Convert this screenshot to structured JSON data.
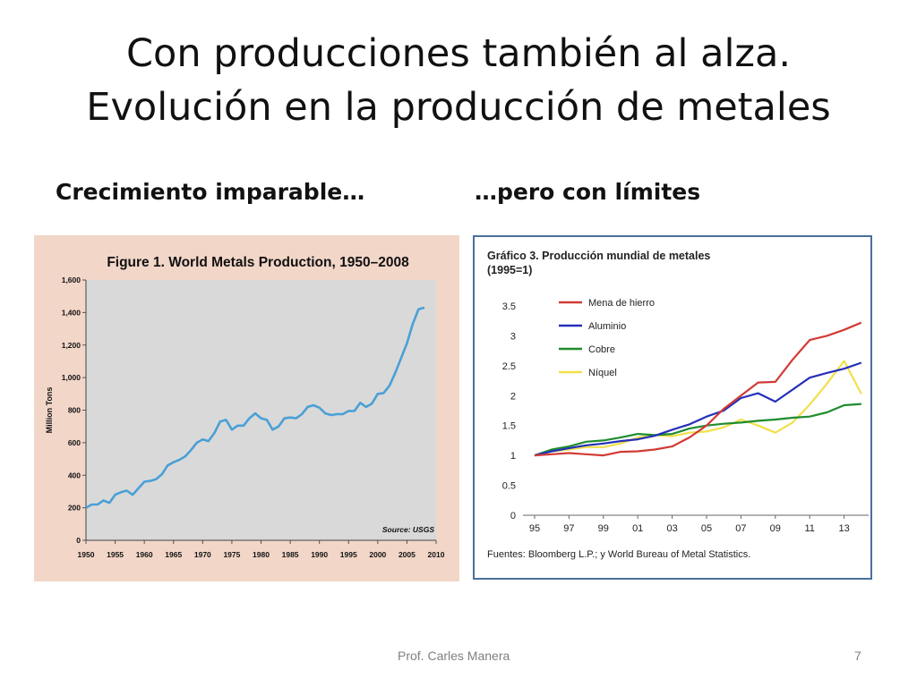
{
  "slide": {
    "title_line1": "Con producciones también al alza.",
    "title_line2": "Evolución en la producción de metales",
    "left_heading": "Crecimiento imparable…",
    "right_heading": "…pero con límites",
    "footer_author": "Prof. Carles Manera",
    "page_number": "7"
  },
  "colors": {
    "left_bg": "#f2d6c8",
    "left_plot": "#d9d9d9",
    "left_line": "#4aa0d6",
    "right_border": "#4a6f9c",
    "iron": "#d23b35",
    "aluminum": "#2430b8",
    "copper": "#1f8c2e",
    "nickel": "#f1e04a"
  },
  "chart_data": [
    {
      "type": "line",
      "title": "Figure 1. World Metals Production, 1950–2008",
      "xlabel": "",
      "ylabel": "Million Tons",
      "source": "Source: USGS",
      "xlim": [
        1950,
        2010
      ],
      "ylim": [
        0,
        1600
      ],
      "x_ticks": [
        1950,
        1955,
        1960,
        1965,
        1970,
        1975,
        1980,
        1985,
        1990,
        1995,
        2000,
        2005,
        2010
      ],
      "x_tick_labels": [
        "1950",
        "1955",
        "1960",
        "1965",
        "1970",
        "1975",
        "1980",
        "1985",
        "1990",
        "1995",
        "2000",
        "2005",
        "2010"
      ],
      "y_ticks": [
        0,
        200,
        400,
        600,
        800,
        1000,
        1200,
        1400,
        1600
      ],
      "y_tick_labels": [
        "0",
        "200",
        "400",
        "600",
        "800",
        "1,000",
        "1,200",
        "1,400",
        "1,600"
      ],
      "grid": false,
      "series": [
        {
          "name": "World Metals Production",
          "x": [
            1950,
            1951,
            1952,
            1953,
            1954,
            1955,
            1956,
            1957,
            1958,
            1959,
            1960,
            1961,
            1962,
            1963,
            1964,
            1965,
            1966,
            1967,
            1968,
            1969,
            1970,
            1971,
            1972,
            1973,
            1974,
            1975,
            1976,
            1977,
            1978,
            1979,
            1980,
            1981,
            1982,
            1983,
            1984,
            1985,
            1986,
            1987,
            1988,
            1989,
            1990,
            1991,
            1992,
            1993,
            1994,
            1995,
            1996,
            1997,
            1998,
            1999,
            2000,
            2001,
            2002,
            2003,
            2004,
            2005,
            2006,
            2007,
            2008
          ],
          "values": [
            200,
            220,
            220,
            245,
            230,
            280,
            295,
            305,
            280,
            320,
            360,
            365,
            375,
            405,
            460,
            480,
            495,
            515,
            555,
            600,
            620,
            610,
            660,
            730,
            740,
            680,
            705,
            705,
            750,
            780,
            750,
            740,
            680,
            700,
            750,
            755,
            750,
            775,
            820,
            830,
            815,
            780,
            770,
            775,
            775,
            795,
            795,
            845,
            820,
            840,
            900,
            905,
            950,
            1030,
            1120,
            1210,
            1330,
            1420,
            1430
          ]
        }
      ]
    },
    {
      "type": "line",
      "title": "Gráfico 3. Producción mundial de metales",
      "subtitle": "(1995=1)",
      "xlabel": "",
      "ylabel": "",
      "source": "Fuentes: Bloomberg L.P.;  y World Bureau of Metal Statistics.",
      "xlim": [
        1995,
        2014
      ],
      "ylim": [
        0,
        3.5
      ],
      "x_ticks": [
        1995,
        1997,
        1999,
        2001,
        2003,
        2005,
        2007,
        2009,
        2011,
        2013
      ],
      "x_tick_labels": [
        "95",
        "97",
        "99",
        "01",
        "03",
        "05",
        "07",
        "09",
        "11",
        "13"
      ],
      "y_ticks": [
        0,
        0.5,
        1,
        1.5,
        2,
        2.5,
        3,
        3.5
      ],
      "y_tick_labels": [
        "0",
        "0.5",
        "1",
        "1.5",
        "2",
        "2.5",
        "3",
        "3.5"
      ],
      "grid": false,
      "legend": "top-left",
      "x": [
        1995,
        1996,
        1997,
        1998,
        1999,
        2000,
        2001,
        2002,
        2003,
        2004,
        2005,
        2006,
        2007,
        2008,
        2009,
        2010,
        2011,
        2012,
        2013,
        2014
      ],
      "series": [
        {
          "name": "Mena de hierro",
          "color_key": "iron",
          "values": [
            1.0,
            1.02,
            1.04,
            1.02,
            1.0,
            1.06,
            1.07,
            1.1,
            1.15,
            1.3,
            1.5,
            1.78,
            2.0,
            2.22,
            2.23,
            2.6,
            2.93,
            3.0,
            3.1,
            3.22
          ]
        },
        {
          "name": "Aluminio",
          "color_key": "aluminum",
          "values": [
            1.0,
            1.07,
            1.12,
            1.17,
            1.2,
            1.24,
            1.27,
            1.33,
            1.43,
            1.52,
            1.65,
            1.75,
            1.96,
            2.04,
            1.9,
            2.1,
            2.3,
            2.38,
            2.45,
            2.55
          ]
        },
        {
          "name": "Cobre",
          "color_key": "copper",
          "values": [
            1.0,
            1.1,
            1.15,
            1.23,
            1.25,
            1.3,
            1.36,
            1.34,
            1.36,
            1.45,
            1.5,
            1.53,
            1.55,
            1.58,
            1.6,
            1.63,
            1.65,
            1.72,
            1.84,
            1.86
          ]
        },
        {
          "name": "Níquel",
          "color_key": "nickel",
          "values": [
            1.0,
            1.07,
            1.1,
            1.14,
            1.14,
            1.2,
            1.3,
            1.34,
            1.32,
            1.38,
            1.4,
            1.47,
            1.6,
            1.5,
            1.38,
            1.55,
            1.85,
            2.2,
            2.58,
            2.03
          ]
        }
      ]
    }
  ]
}
